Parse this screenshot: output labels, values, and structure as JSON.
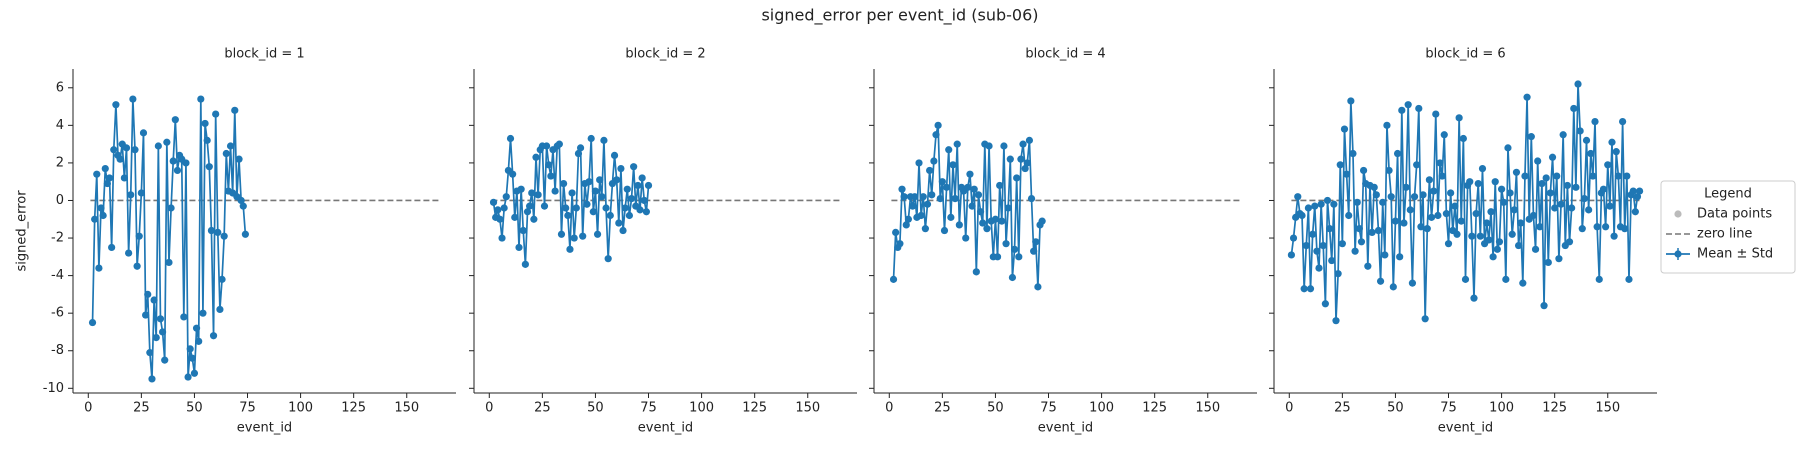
{
  "suptitle": "signed_error per event_id (sub-06)",
  "sharey": true,
  "legend": {
    "title": "Legend",
    "corner": "right",
    "entries": [
      {
        "label": "Data points",
        "color": "#bbbbbb",
        "marker": "dot"
      },
      {
        "label": "zero line",
        "color": "#777777",
        "marker": "dash"
      },
      {
        "label": "Mean ± Std",
        "color": "#1f77b4",
        "marker": "errorbar"
      }
    ]
  },
  "chart_data": [
    {
      "type": "line",
      "title": "block_id = 1",
      "x_label": "event_id",
      "y_label": "signed_error",
      "hline": 0,
      "xlim": [
        -7.2,
        173.2
      ],
      "ylim": [
        -10.25,
        7
      ],
      "xticks": [
        0,
        25,
        50,
        75,
        100,
        125,
        150
      ],
      "yticks": [
        -10,
        -8,
        -6,
        -4,
        -2,
        0,
        2,
        4,
        6
      ],
      "x": [
        2,
        3,
        4,
        5,
        6,
        7,
        8,
        9,
        10,
        11,
        12,
        13,
        14,
        15,
        16,
        17,
        18,
        19,
        20,
        21,
        22,
        23,
        24,
        25,
        26,
        27,
        28,
        29,
        30,
        31,
        32,
        33,
        34,
        35,
        36,
        37,
        38,
        39,
        40,
        41,
        42,
        43,
        44,
        45,
        46,
        47,
        48,
        49,
        50,
        51,
        52,
        53,
        54,
        55,
        56,
        57,
        58,
        59,
        60,
        61,
        62,
        63,
        64,
        65,
        66,
        67,
        68,
        69,
        70,
        71,
        72,
        73,
        74
      ],
      "series": [
        {
          "color": "#1f77b4",
          "values": [
            -6.5,
            -1.0,
            1.4,
            -3.6,
            -0.4,
            -0.8,
            1.7,
            0.9,
            1.2,
            -2.5,
            2.7,
            5.1,
            2.4,
            2.2,
            3.0,
            1.2,
            2.8,
            -2.8,
            0.3,
            5.4,
            2.7,
            -3.5,
            -1.9,
            0.4,
            3.6,
            -6.1,
            -5.0,
            -8.1,
            -9.5,
            -5.3,
            -7.3,
            2.9,
            -6.3,
            -7.0,
            -8.5,
            3.1,
            -3.3,
            -0.4,
            2.1,
            4.3,
            1.6,
            2.4,
            2.2,
            -6.2,
            2.0,
            -9.4,
            -7.9,
            -8.4,
            -9.2,
            -6.8,
            -7.5,
            5.4,
            -6.0,
            4.1,
            3.2,
            1.8,
            -1.6,
            -7.2,
            4.6,
            -1.7,
            -5.8,
            -4.2,
            -1.9,
            2.5,
            0.5,
            2.9,
            0.4,
            4.8,
            0.2,
            2.2,
            0.0,
            -0.3,
            -1.8
          ]
        }
      ]
    },
    {
      "type": "line",
      "title": "block_id = 2",
      "x_label": "event_id",
      "hline": 0,
      "xlim": [
        -7.2,
        173.2
      ],
      "ylim": [
        -10.25,
        7
      ],
      "xticks": [
        0,
        25,
        50,
        75,
        100,
        125,
        150
      ],
      "yticks": [
        -10,
        -8,
        -6,
        -4,
        -2,
        0,
        2,
        4,
        6
      ],
      "x": [
        2,
        3,
        4,
        5,
        6,
        7,
        8,
        9,
        10,
        11,
        12,
        13,
        14,
        15,
        16,
        17,
        18,
        19,
        20,
        21,
        22,
        23,
        24,
        25,
        26,
        27,
        28,
        29,
        30,
        31,
        32,
        33,
        34,
        35,
        36,
        37,
        38,
        39,
        40,
        41,
        42,
        43,
        44,
        45,
        46,
        47,
        48,
        49,
        50,
        51,
        52,
        53,
        54,
        55,
        56,
        57,
        58,
        59,
        60,
        61,
        62,
        63,
        64,
        65,
        66,
        67,
        68,
        69,
        70,
        71,
        72,
        73,
        74,
        75
      ],
      "series": [
        {
          "color": "#1f77b4",
          "values": [
            -0.1,
            -0.9,
            -0.5,
            -1.0,
            -2.0,
            -0.4,
            0.2,
            1.6,
            3.3,
            1.4,
            -0.9,
            0.5,
            -2.5,
            0.6,
            -1.6,
            -3.4,
            -0.6,
            -0.3,
            0.4,
            -1.0,
            2.3,
            0.3,
            2.7,
            2.9,
            -0.3,
            2.9,
            1.9,
            1.3,
            2.7,
            0.5,
            2.9,
            3.0,
            -1.8,
            0.9,
            -0.4,
            -0.8,
            -2.6,
            0.4,
            -2.0,
            -0.4,
            2.5,
            2.8,
            -1.9,
            0.9,
            -0.2,
            1.0,
            3.3,
            -0.6,
            0.5,
            -1.8,
            1.1,
            0.2,
            3.2,
            -0.4,
            -3.1,
            -0.8,
            0.9,
            2.4,
            1.1,
            -1.2,
            1.7,
            -1.6,
            -0.4,
            0.6,
            -0.8,
            0.1,
            1.8,
            -0.3,
            0.8,
            -0.5,
            1.2,
            0.0,
            -0.6,
            0.8
          ]
        }
      ]
    },
    {
      "type": "line",
      "title": "block_id = 4",
      "x_label": "event_id",
      "hline": 0,
      "xlim": [
        -7.2,
        173.2
      ],
      "ylim": [
        -10.25,
        7
      ],
      "xticks": [
        0,
        25,
        50,
        75,
        100,
        125,
        150
      ],
      "yticks": [
        -10,
        -8,
        -6,
        -4,
        -2,
        0,
        2,
        4,
        6
      ],
      "x": [
        2,
        3,
        4,
        5,
        6,
        7,
        8,
        9,
        10,
        11,
        12,
        13,
        14,
        15,
        16,
        17,
        18,
        19,
        20,
        21,
        22,
        23,
        24,
        25,
        26,
        27,
        28,
        29,
        30,
        31,
        32,
        33,
        34,
        35,
        36,
        37,
        38,
        39,
        40,
        41,
        42,
        43,
        44,
        45,
        46,
        47,
        48,
        49,
        50,
        51,
        52,
        53,
        54,
        55,
        56,
        57,
        58,
        59,
        60,
        61,
        62,
        63,
        64,
        65,
        66,
        67,
        68,
        69,
        70,
        71,
        72
      ],
      "series": [
        {
          "color": "#1f77b4",
          "values": [
            -4.2,
            -1.7,
            -2.5,
            -2.3,
            0.6,
            0.2,
            -1.3,
            -1.0,
            0.2,
            -0.3,
            0.2,
            -0.9,
            2.0,
            -0.8,
            0.2,
            -1.5,
            -0.2,
            1.6,
            0.3,
            2.1,
            3.5,
            4.0,
            0.1,
            1.0,
            -1.6,
            0.7,
            2.7,
            -0.9,
            1.9,
            0.1,
            3.0,
            -1.3,
            0.7,
            0.5,
            -2.0,
            0.7,
            1.4,
            -0.3,
            0.6,
            -3.8,
            0.3,
            -0.6,
            -1.2,
            3.0,
            -1.5,
            2.9,
            -1.1,
            -3.0,
            -1.0,
            -3.0,
            0.8,
            -1.1,
            2.9,
            -2.3,
            -0.4,
            2.2,
            -4.1,
            -2.6,
            1.2,
            -3.0,
            2.2,
            3.0,
            1.7,
            2.0,
            3.2,
            0.1,
            -2.7,
            -2.2,
            -4.6,
            -1.3,
            -1.1
          ]
        }
      ]
    },
    {
      "type": "line",
      "title": "block_id = 6",
      "x_label": "event_id",
      "hline": 0,
      "xlim": [
        -7.2,
        173.2
      ],
      "ylim": [
        -10.25,
        7
      ],
      "xticks": [
        0,
        25,
        50,
        75,
        100,
        125,
        150
      ],
      "yticks": [
        -10,
        -8,
        -6,
        -4,
        -2,
        0,
        2,
        4,
        6
      ],
      "x": [
        1,
        2,
        3,
        4,
        5,
        6,
        7,
        8,
        9,
        10,
        11,
        12,
        13,
        14,
        15,
        16,
        17,
        18,
        19,
        20,
        21,
        22,
        23,
        24,
        25,
        26,
        27,
        28,
        29,
        30,
        31,
        32,
        33,
        34,
        35,
        36,
        37,
        38,
        39,
        40,
        41,
        42,
        43,
        44,
        45,
        46,
        47,
        48,
        49,
        50,
        51,
        52,
        53,
        54,
        55,
        56,
        57,
        58,
        59,
        60,
        61,
        62,
        63,
        64,
        65,
        66,
        67,
        68,
        69,
        70,
        71,
        72,
        73,
        74,
        75,
        76,
        77,
        78,
        79,
        80,
        81,
        82,
        83,
        84,
        85,
        86,
        87,
        88,
        89,
        90,
        91,
        92,
        93,
        94,
        95,
        96,
        97,
        98,
        99,
        100,
        101,
        102,
        103,
        104,
        105,
        106,
        107,
        108,
        109,
        110,
        111,
        112,
        113,
        114,
        115,
        116,
        117,
        118,
        119,
        120,
        121,
        122,
        123,
        124,
        125,
        126,
        127,
        128,
        129,
        130,
        131,
        132,
        133,
        134,
        135,
        136,
        137,
        138,
        139,
        140,
        141,
        142,
        143,
        144,
        145,
        146,
        147,
        148,
        149,
        150,
        151,
        152,
        153,
        154,
        155,
        156,
        157,
        158,
        159,
        160,
        161,
        162,
        163,
        164,
        165
      ],
      "series": [
        {
          "color": "#1f77b4",
          "values": [
            -2.9,
            -2.0,
            -0.9,
            0.2,
            -0.7,
            -0.8,
            -4.7,
            -2.4,
            -0.4,
            -4.7,
            -1.8,
            -0.3,
            -2.7,
            -3.6,
            -0.2,
            -2.4,
            -5.5,
            0.0,
            -1.5,
            -3.2,
            -0.2,
            -6.4,
            -3.9,
            1.9,
            -2.3,
            3.8,
            1.4,
            -0.8,
            5.3,
            2.5,
            -2.7,
            -0.1,
            -1.5,
            -2.2,
            1.6,
            0.9,
            -3.5,
            0.8,
            -1.7,
            0.7,
            0.3,
            -1.6,
            -4.3,
            -0.1,
            -2.9,
            4.0,
            1.6,
            0.2,
            -4.6,
            -1.1,
            2.5,
            -3.0,
            4.8,
            -1.2,
            0.7,
            5.1,
            -0.5,
            -4.4,
            0.2,
            1.9,
            4.9,
            -1.4,
            0.3,
            -6.3,
            -1.5,
            1.1,
            -0.9,
            0.5,
            4.6,
            -0.8,
            2.0,
            1.3,
            3.5,
            -0.7,
            -2.3,
            0.4,
            -1.6,
            -0.3,
            -1.8,
            4.4,
            -1.1,
            3.3,
            -4.2,
            0.8,
            1.0,
            -1.9,
            -5.2,
            -0.7,
            0.9,
            -1.9,
            1.7,
            -2.3,
            -1.2,
            -2.1,
            -0.6,
            -3.0,
            1.0,
            -2.6,
            -2.2,
            0.6,
            -0.1,
            -4.2,
            2.8,
            0.4,
            -1.8,
            -0.5,
            1.5,
            -2.4,
            -1.2,
            -4.4,
            1.3,
            5.5,
            -1.0,
            3.4,
            -0.8,
            -2.6,
            2.1,
            -1.4,
            0.9,
            -5.6,
            1.2,
            -3.3,
            0.4,
            2.3,
            -0.4,
            1.3,
            -3.1,
            -0.2,
            3.5,
            -2.4,
            0.8,
            -2.2,
            -0.4,
            4.9,
            0.7,
            6.2,
            3.7,
            -1.5,
            0.1,
            3.2,
            -0.5,
            2.5,
            1.3,
            4.2,
            -1.4,
            -4.2,
            0.4,
            0.6,
            -1.4,
            1.9,
            -0.3,
            3.1,
            -1.9,
            2.6,
            1.3,
            -1.4,
            4.2,
            -1.5,
            1.3,
            -4.2,
            0.3,
            0.5,
            -0.6,
            0.2,
            0.5
          ]
        }
      ]
    }
  ]
}
